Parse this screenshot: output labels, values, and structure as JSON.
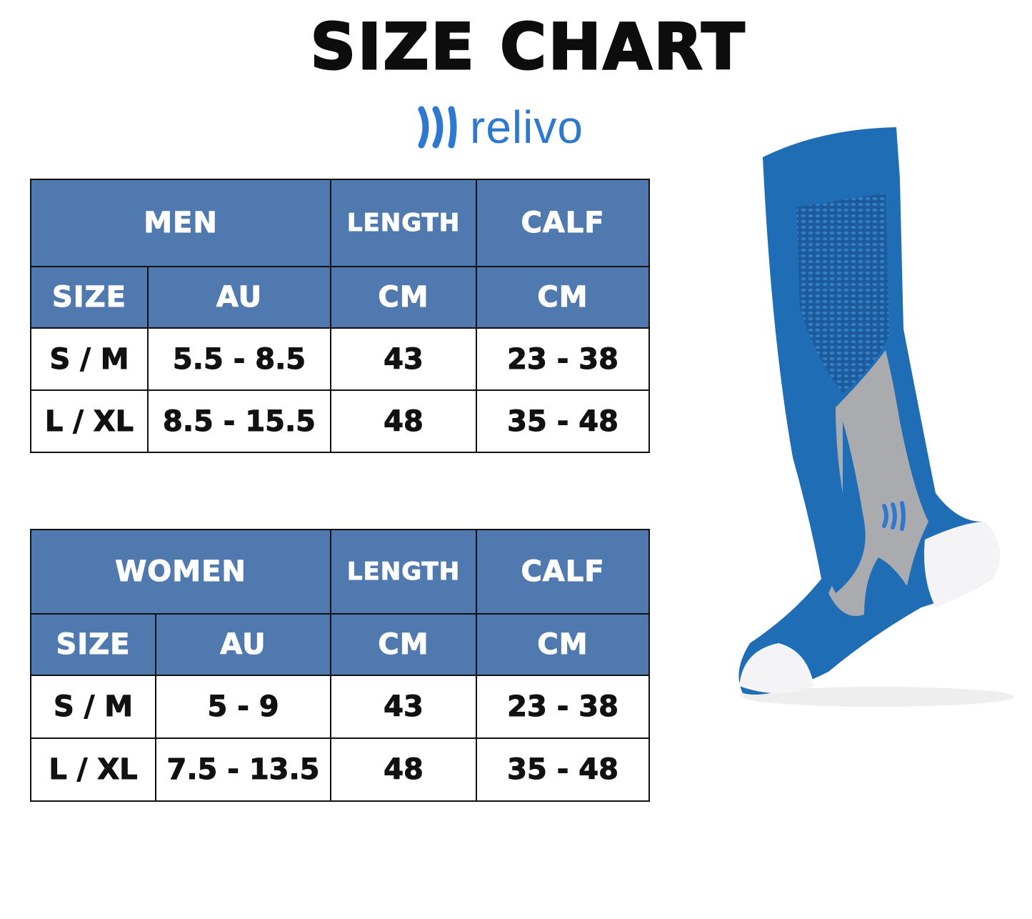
{
  "title": "SIZE CHART",
  "brand": {
    "name": "relivo",
    "color": "#2f78d2"
  },
  "header_color": "#5079b0",
  "tables": [
    {
      "group": "MEN",
      "length_header": "LENGTH",
      "calf_header": "CALF",
      "sub_headers": [
        "SIZE",
        "AU",
        "CM",
        "CM"
      ],
      "rows": [
        [
          "S / M",
          "5.5 - 8.5",
          "43",
          "23 - 38"
        ],
        [
          "L / XL",
          "8.5 - 15.5",
          "48",
          "35 - 48"
        ]
      ]
    },
    {
      "group": "WOMEN",
      "length_header": "LENGTH",
      "calf_header": "CALF",
      "sub_headers": [
        "SIZE",
        "AU",
        "CM",
        "CM"
      ],
      "rows": [
        [
          "S / M",
          "5 - 9",
          "43",
          "23 - 38"
        ],
        [
          "L / XL",
          "7.5 - 13.5",
          "48",
          "35 - 48"
        ]
      ]
    }
  ]
}
